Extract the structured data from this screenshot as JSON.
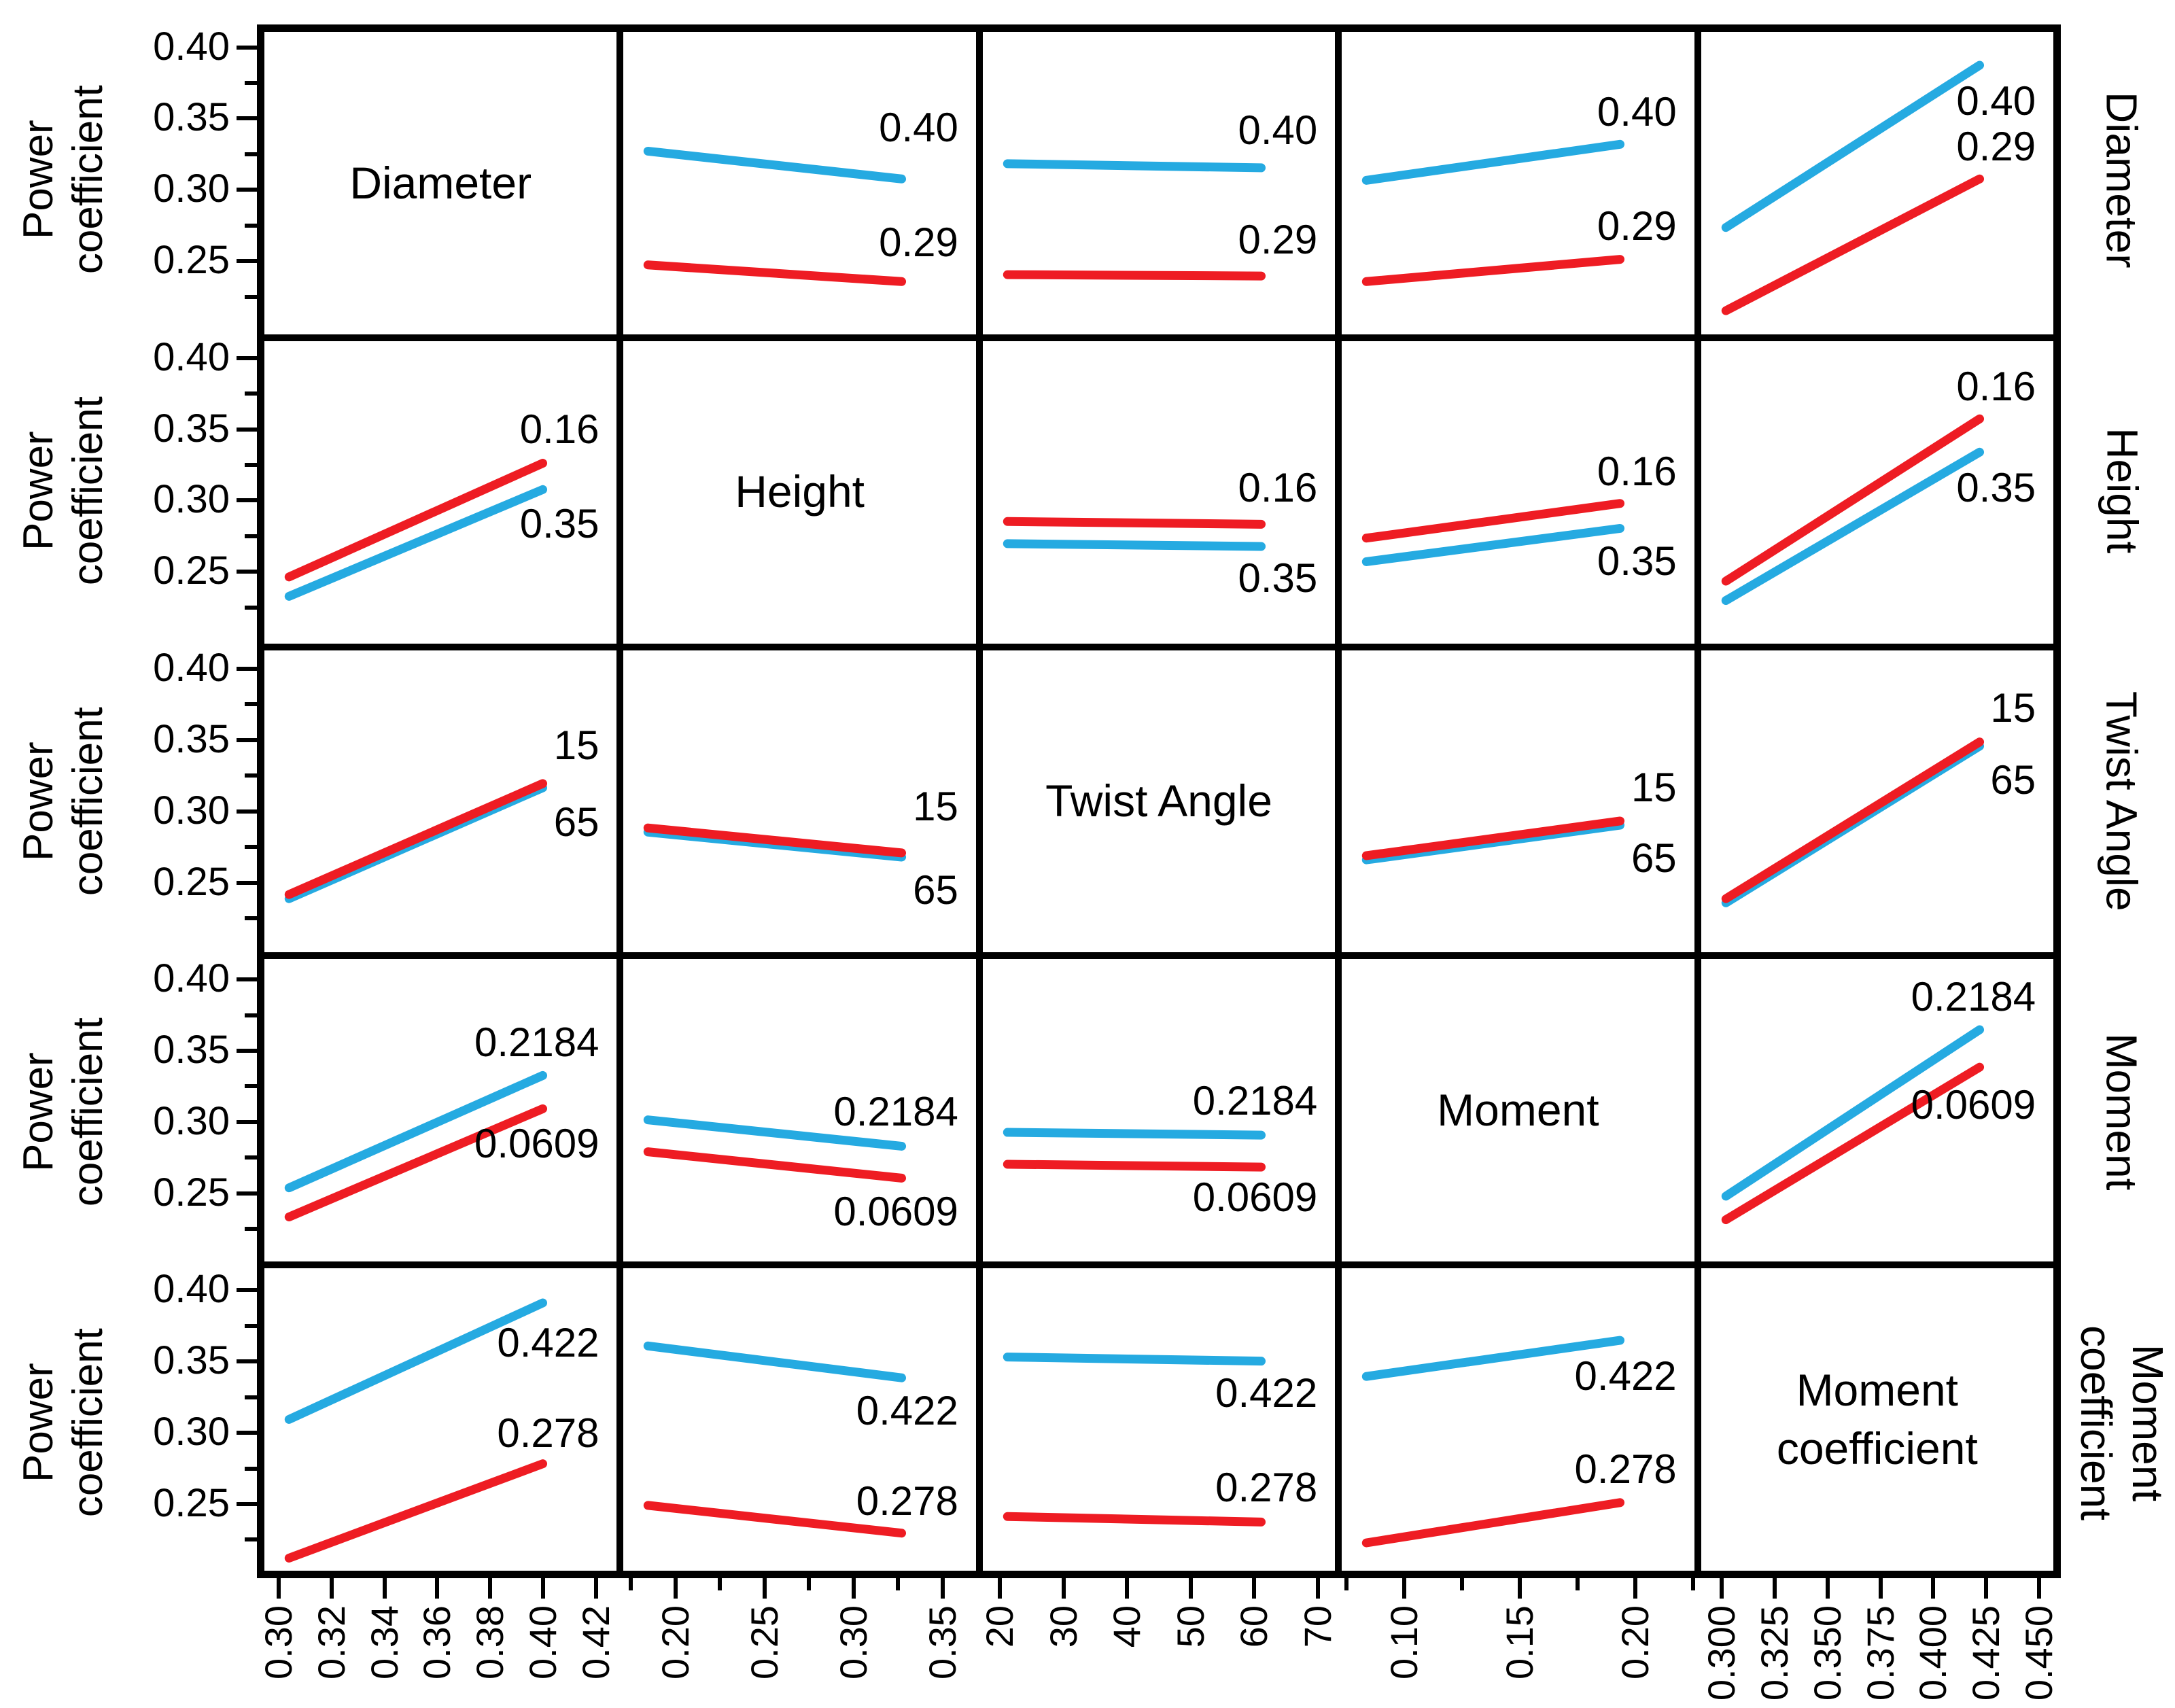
{
  "chart_data": {
    "type": "line",
    "description": "5x5 interaction plot matrix; each off-diagonal panel shows fitted Power coefficient lines for two levels of the row factor versus the column factor",
    "colors": {
      "blue": "#25aae1",
      "red": "#ee1c23",
      "axis": "#000000",
      "background": "#ffffff"
    },
    "ylabel_lines": [
      "Power",
      "coefficient"
    ],
    "y_domain": [
      0.198,
      0.416
    ],
    "y_ticks": [
      {
        "value": 0.4,
        "label": "0.40"
      },
      {
        "value": 0.35,
        "label": "0.35"
      },
      {
        "value": 0.3,
        "label": "0.30"
      },
      {
        "value": 0.25,
        "label": "0.25"
      }
    ],
    "y_minor_ticks": [
      0.375,
      0.325,
      0.275,
      0.225
    ],
    "factors": [
      "Diameter",
      "Height",
      "Twist Angle",
      "Moment",
      "Moment coefficient"
    ],
    "rows": [
      {
        "factor": "Diameter",
        "right_label_lines": [
          "Diameter"
        ],
        "level_labels": [
          "0.40",
          "0.29"
        ]
      },
      {
        "factor": "Height",
        "right_label_lines": [
          "Height"
        ],
        "level_labels": [
          "0.16",
          "0.35"
        ]
      },
      {
        "factor": "Twist Angle",
        "right_label_lines": [
          "Twist Angle"
        ],
        "level_labels": [
          "15",
          "65"
        ]
      },
      {
        "factor": "Moment",
        "right_label_lines": [
          "Moment"
        ],
        "level_labels": [
          "0.2184",
          "0.0609"
        ]
      },
      {
        "factor": "Moment coefficient",
        "right_label_lines": [
          "Moment",
          "coefficient"
        ],
        "level_labels": [
          "0.422",
          "0.278"
        ]
      }
    ],
    "columns": [
      {
        "factor": "Diameter",
        "tick_labels": [
          "0.30",
          "0.32",
          "0.34",
          "0.36",
          "0.38",
          "0.40",
          "0.42"
        ],
        "has_minor_ticks": false
      },
      {
        "factor": "Height",
        "tick_labels": [
          "0.20",
          "0.25",
          "0.30",
          "0.35"
        ],
        "has_minor_ticks": true
      },
      {
        "factor": "Twist Angle",
        "tick_labels": [
          "20",
          "30",
          "40",
          "50",
          "60",
          "70"
        ],
        "has_minor_ticks": false
      },
      {
        "factor": "Moment",
        "tick_labels": [
          "0.10",
          "0.15",
          "0.20"
        ],
        "has_minor_ticks": true
      },
      {
        "factor": "Moment coefficient",
        "tick_labels": [
          "0.300",
          "0.325",
          "0.350",
          "0.375",
          "0.400",
          "0.425",
          "0.450"
        ],
        "has_minor_ticks": false
      }
    ],
    "panels": [
      {
        "row": 0,
        "col": 0,
        "title_lines": [
          "Diameter"
        ]
      },
      {
        "row": 0,
        "col": 1,
        "series": [
          {
            "color": "blue",
            "y": [
              0.33,
              0.31
            ]
          },
          {
            "color": "red",
            "y": [
              0.248,
              0.236
            ]
          }
        ],
        "labels": [
          {
            "text": "0.40",
            "y": 0.347
          },
          {
            "text": "0.29",
            "y": 0.264
          }
        ]
      },
      {
        "row": 0,
        "col": 2,
        "series": [
          {
            "color": "blue",
            "y": [
              0.321,
              0.318
            ]
          },
          {
            "color": "red",
            "y": [
              0.241,
              0.24
            ]
          }
        ],
        "labels": [
          {
            "text": "0.40",
            "y": 0.345
          },
          {
            "text": "0.29",
            "y": 0.266
          }
        ]
      },
      {
        "row": 0,
        "col": 3,
        "series": [
          {
            "color": "blue",
            "y": [
              0.309,
              0.335
            ]
          },
          {
            "color": "red",
            "y": [
              0.236,
              0.252
            ]
          }
        ],
        "labels": [
          {
            "text": "0.40",
            "y": 0.358
          },
          {
            "text": "0.29",
            "y": 0.276
          }
        ]
      },
      {
        "row": 0,
        "col": 4,
        "series": [
          {
            "color": "blue",
            "y": [
              0.275,
              0.392
            ]
          },
          {
            "color": "red",
            "y": [
              0.215,
              0.31
            ]
          }
        ],
        "labels": [
          {
            "text": "0.40",
            "y": 0.366
          },
          {
            "text": "0.29",
            "y": 0.333
          }
        ]
      },
      {
        "row": 1,
        "col": 0,
        "series": [
          {
            "color": "red",
            "y": [
              0.246,
              0.328
            ]
          },
          {
            "color": "blue",
            "y": [
              0.232,
              0.309
            ]
          }
        ],
        "labels": [
          {
            "text": "0.16",
            "y": 0.352
          },
          {
            "text": "0.35",
            "y": 0.284
          }
        ]
      },
      {
        "row": 1,
        "col": 1,
        "title_lines": [
          "Height"
        ]
      },
      {
        "row": 1,
        "col": 2,
        "series": [
          {
            "color": "red",
            "y": [
              0.286,
              0.284
            ]
          },
          {
            "color": "blue",
            "y": [
              0.27,
              0.268
            ]
          }
        ],
        "labels": [
          {
            "text": "0.16",
            "y": 0.31
          },
          {
            "text": "0.35",
            "y": 0.245
          }
        ]
      },
      {
        "row": 1,
        "col": 3,
        "series": [
          {
            "color": "red",
            "y": [
              0.274,
              0.299
            ]
          },
          {
            "color": "blue",
            "y": [
              0.257,
              0.281
            ]
          }
        ],
        "labels": [
          {
            "text": "0.16",
            "y": 0.322
          },
          {
            "text": "0.35",
            "y": 0.257
          }
        ]
      },
      {
        "row": 1,
        "col": 4,
        "series": [
          {
            "color": "red",
            "y": [
              0.243,
              0.36
            ]
          },
          {
            "color": "blue",
            "y": [
              0.229,
              0.336
            ]
          }
        ],
        "labels": [
          {
            "text": "0.16",
            "y": 0.383
          },
          {
            "text": "0.35",
            "y": 0.31
          }
        ]
      },
      {
        "row": 2,
        "col": 0,
        "series": [
          {
            "color": "blue",
            "y": [
              0.237,
              0.317
            ]
          },
          {
            "color": "red",
            "y": [
              0.24,
              0.32
            ]
          }
        ],
        "labels": [
          {
            "text": "15",
            "y": 0.347
          },
          {
            "text": "65",
            "y": 0.292
          }
        ]
      },
      {
        "row": 2,
        "col": 1,
        "series": [
          {
            "color": "blue",
            "y": [
              0.285,
              0.267
            ]
          },
          {
            "color": "red",
            "y": [
              0.288,
              0.27
            ]
          }
        ],
        "labels": [
          {
            "text": "15",
            "y": 0.303
          },
          {
            "text": "65",
            "y": 0.243
          }
        ]
      },
      {
        "row": 2,
        "col": 2,
        "title_lines": [
          "Twist Angle"
        ]
      },
      {
        "row": 2,
        "col": 3,
        "series": [
          {
            "color": "blue",
            "y": [
              0.265,
              0.29
            ]
          },
          {
            "color": "red",
            "y": [
              0.268,
              0.293
            ]
          }
        ],
        "labels": [
          {
            "text": "15",
            "y": 0.317
          },
          {
            "text": "65",
            "y": 0.266
          }
        ]
      },
      {
        "row": 2,
        "col": 4,
        "series": [
          {
            "color": "blue",
            "y": [
              0.234,
              0.347
            ]
          },
          {
            "color": "red",
            "y": [
              0.237,
              0.35
            ]
          }
        ],
        "labels": [
          {
            "text": "15",
            "y": 0.374
          },
          {
            "text": "65",
            "y": 0.322
          }
        ]
      },
      {
        "row": 3,
        "col": 0,
        "series": [
          {
            "color": "blue",
            "y": [
              0.251,
              0.332
            ]
          },
          {
            "color": "red",
            "y": [
              0.23,
              0.308
            ]
          }
        ],
        "labels": [
          {
            "text": "0.2184",
            "y": 0.356
          },
          {
            "text": "0.0609",
            "y": 0.283
          }
        ]
      },
      {
        "row": 3,
        "col": 1,
        "series": [
          {
            "color": "blue",
            "y": [
              0.3,
              0.281
            ]
          },
          {
            "color": "red",
            "y": [
              0.277,
              0.258
            ]
          }
        ],
        "labels": [
          {
            "text": "0.2184",
            "y": 0.306
          },
          {
            "text": "0.0609",
            "y": 0.234
          }
        ]
      },
      {
        "row": 3,
        "col": 2,
        "series": [
          {
            "color": "blue",
            "y": [
              0.291,
              0.289
            ]
          },
          {
            "color": "red",
            "y": [
              0.268,
              0.266
            ]
          }
        ],
        "labels": [
          {
            "text": "0.2184",
            "y": 0.314
          },
          {
            "text": "0.0609",
            "y": 0.244
          }
        ]
      },
      {
        "row": 3,
        "col": 3,
        "title_lines": [
          "Moment"
        ]
      },
      {
        "row": 3,
        "col": 4,
        "series": [
          {
            "color": "blue",
            "y": [
              0.245,
              0.365
            ]
          },
          {
            "color": "red",
            "y": [
              0.228,
              0.338
            ]
          }
        ],
        "labels": [
          {
            "text": "0.2184",
            "y": 0.389
          },
          {
            "text": "0.0609",
            "y": 0.311
          }
        ]
      },
      {
        "row": 4,
        "col": 0,
        "series": [
          {
            "color": "blue",
            "y": [
              0.307,
              0.391
            ]
          },
          {
            "color": "red",
            "y": [
              0.207,
              0.275
            ]
          }
        ],
        "labels": [
          {
            "text": "0.422",
            "y": 0.362
          },
          {
            "text": "0.278",
            "y": 0.297
          }
        ]
      },
      {
        "row": 4,
        "col": 1,
        "series": [
          {
            "color": "blue",
            "y": [
              0.36,
              0.337
            ]
          },
          {
            "color": "red",
            "y": [
              0.245,
              0.225
            ]
          }
        ],
        "labels": [
          {
            "text": "0.422",
            "y": 0.313
          },
          {
            "text": "0.278",
            "y": 0.248
          }
        ]
      },
      {
        "row": 4,
        "col": 2,
        "series": [
          {
            "color": "blue",
            "y": [
              0.352,
              0.349
            ]
          },
          {
            "color": "red",
            "y": [
              0.237,
              0.233
            ]
          }
        ],
        "labels": [
          {
            "text": "0.422",
            "y": 0.326
          },
          {
            "text": "0.278",
            "y": 0.258
          }
        ]
      },
      {
        "row": 4,
        "col": 3,
        "series": [
          {
            "color": "blue",
            "y": [
              0.338,
              0.364
            ]
          },
          {
            "color": "red",
            "y": [
              0.218,
              0.247
            ]
          }
        ],
        "labels": [
          {
            "text": "0.422",
            "y": 0.338
          },
          {
            "text": "0.278",
            "y": 0.271
          }
        ]
      },
      {
        "row": 4,
        "col": 4,
        "title_lines": [
          "Moment",
          "coefficient"
        ]
      }
    ]
  }
}
